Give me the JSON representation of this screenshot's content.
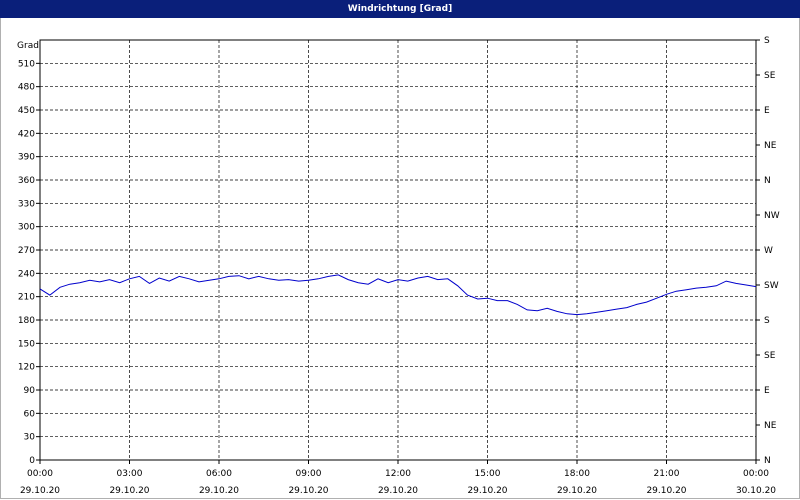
{
  "title": "Windrichtung [Grad]",
  "chart_data": {
    "type": "line",
    "title": "Windrichtung [Grad]",
    "ylabel": "Grad",
    "ylim": [
      0,
      540
    ],
    "yticks": [
      0,
      30,
      60,
      90,
      120,
      150,
      180,
      210,
      240,
      270,
      300,
      330,
      360,
      390,
      420,
      450,
      480,
      510
    ],
    "right_ticks": [
      {
        "v": 0,
        "label": "N"
      },
      {
        "v": 45,
        "label": "NE"
      },
      {
        "v": 90,
        "label": "E"
      },
      {
        "v": 135,
        "label": "SE"
      },
      {
        "v": 180,
        "label": "S"
      },
      {
        "v": 225,
        "label": "SW"
      },
      {
        "v": 270,
        "label": "W"
      },
      {
        "v": 315,
        "label": "NW"
      },
      {
        "v": 360,
        "label": "N"
      },
      {
        "v": 405,
        "label": "NE"
      },
      {
        "v": 450,
        "label": "E"
      },
      {
        "v": 495,
        "label": "SE"
      },
      {
        "v": 540,
        "label": "S"
      }
    ],
    "xlim": [
      0,
      24
    ],
    "xticks": [
      {
        "h": 0,
        "time": "00:00",
        "date": "29.10.20"
      },
      {
        "h": 3,
        "time": "03:00",
        "date": "29.10.20"
      },
      {
        "h": 6,
        "time": "06:00",
        "date": "29.10.20"
      },
      {
        "h": 9,
        "time": "09:00",
        "date": "29.10.20"
      },
      {
        "h": 12,
        "time": "12:00",
        "date": "29.10.20"
      },
      {
        "h": 15,
        "time": "15:00",
        "date": "29.10.20"
      },
      {
        "h": 18,
        "time": "18:00",
        "date": "29.10.20"
      },
      {
        "h": 21,
        "time": "21:00",
        "date": "29.10.20"
      },
      {
        "h": 24,
        "time": "00:00",
        "date": "30.10.20"
      }
    ],
    "grid": true,
    "series": [
      {
        "color": "#0000cc",
        "x": [
          0,
          0.33,
          0.67,
          1,
          1.33,
          1.67,
          2,
          2.33,
          2.67,
          3,
          3.33,
          3.67,
          4,
          4.33,
          4.67,
          5,
          5.33,
          5.67,
          6,
          6.33,
          6.67,
          7,
          7.33,
          7.67,
          8,
          8.33,
          8.67,
          9,
          9.33,
          9.67,
          10,
          10.33,
          10.67,
          11,
          11.33,
          11.67,
          12,
          12.33,
          12.67,
          13,
          13.33,
          13.67,
          14,
          14.33,
          14.67,
          15,
          15.33,
          15.67,
          16,
          16.33,
          16.67,
          17,
          17.33,
          17.67,
          18,
          18.33,
          18.67,
          19,
          19.33,
          19.67,
          20,
          20.33,
          20.67,
          21,
          21.33,
          21.67,
          22,
          22.33,
          22.67,
          23,
          23.33,
          23.67,
          24
        ],
        "values": [
          220,
          212,
          222,
          226,
          228,
          231,
          229,
          232,
          228,
          233,
          236,
          227,
          234,
          230,
          236,
          233,
          229,
          231,
          233,
          236,
          237,
          233,
          236,
          233,
          231,
          232,
          230,
          231,
          233,
          236,
          238,
          232,
          228,
          226,
          233,
          228,
          232,
          230,
          234,
          236,
          232,
          233,
          224,
          212,
          207,
          208,
          205,
          205,
          200,
          193,
          192,
          195,
          191,
          188,
          187,
          188,
          190,
          192,
          194,
          196,
          200,
          203,
          208,
          213,
          217,
          219,
          221,
          222,
          224,
          230,
          227,
          225,
          223
        ]
      }
    ]
  }
}
